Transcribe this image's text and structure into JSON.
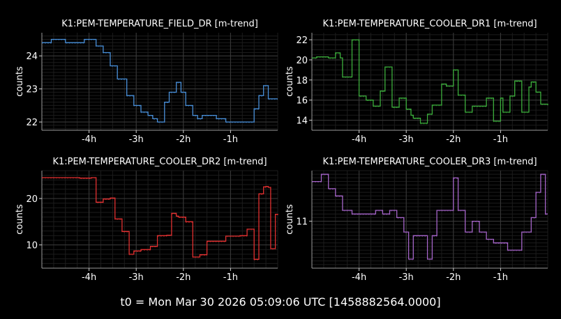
{
  "footer": {
    "text": "t0 = Mon Mar 30 2026 05:09:06 UTC [1458882564.0000]"
  },
  "chart_data": [
    {
      "type": "line",
      "title": "K1:PEM-TEMPERATURE_FIELD_DR [m-trend]",
      "xlabel": "",
      "ylabel": "counts",
      "xlim": [
        -5,
        0
      ],
      "ylim": [
        21.75,
        24.7
      ],
      "xticks": [
        -4,
        -3,
        -2,
        -1
      ],
      "xtick_labels": [
        "-4h",
        "-3h",
        "-2h",
        "-1h"
      ],
      "yticks": [
        22,
        23,
        24
      ],
      "ytick_labels": [
        "22",
        "23",
        "24"
      ],
      "grid": true,
      "color": "#4a90d9",
      "series": [
        {
          "x": [
            -5,
            -4.8,
            -4.5,
            -4.1,
            -3.85,
            -3.7,
            -3.55,
            -3.4,
            -3.2,
            -3.05,
            -2.9,
            -2.75,
            -2.65,
            -2.55,
            -2.4,
            -2.3,
            -2.15,
            -2.05,
            -1.95,
            -1.8,
            -1.7,
            -1.6,
            -1.5,
            -1.3,
            -1.1,
            -0.95,
            -0.8,
            -0.6,
            -0.5,
            -0.4,
            -0.3,
            -0.2,
            -0.1,
            -0.05,
            0
          ],
          "y": [
            24.4,
            24.5,
            24.4,
            24.5,
            24.3,
            24.1,
            23.7,
            23.3,
            22.8,
            22.5,
            22.3,
            22.2,
            22.1,
            22.0,
            22.6,
            22.9,
            23.2,
            22.9,
            22.5,
            22.2,
            22.1,
            22.2,
            22.2,
            22.1,
            22.0,
            22.0,
            22.0,
            22.0,
            22.4,
            22.8,
            23.1,
            22.7,
            22.7,
            22.7,
            22.7
          ]
        }
      ]
    },
    {
      "type": "line",
      "title": "K1:PEM-TEMPERATURE_COOLER_DR1 [m-trend]",
      "xlabel": "",
      "ylabel": "counts",
      "xlim": [
        -5,
        0
      ],
      "ylim": [
        13,
        22.7
      ],
      "xticks": [
        -4,
        -3,
        -2,
        -1
      ],
      "xtick_labels": [
        "-4h",
        "-3h",
        "-2h",
        "-1h"
      ],
      "yticks": [
        14,
        16,
        18,
        20,
        22
      ],
      "ytick_labels": [
        "14",
        "16",
        "18",
        "20",
        "22"
      ],
      "grid": true,
      "color": "#3cae3c",
      "series": [
        {
          "x": [
            -5,
            -4.9,
            -4.65,
            -4.5,
            -4.4,
            -4.35,
            -4.15,
            -4,
            -3.85,
            -3.7,
            -3.55,
            -3.45,
            -3.3,
            -3.15,
            -3.0,
            -2.9,
            -2.85,
            -2.7,
            -2.55,
            -2.45,
            -2.25,
            -2.15,
            -2.0,
            -1.9,
            -1.75,
            -1.6,
            -1.45,
            -1.3,
            -1.15,
            -1.0,
            -0.95,
            -0.8,
            -0.7,
            -0.55,
            -0.4,
            -0.35,
            -0.25,
            -0.15,
            0
          ],
          "y": [
            20.2,
            20.3,
            20.2,
            20.7,
            20.2,
            18.3,
            22.0,
            16.4,
            16.0,
            15.4,
            16.9,
            19.3,
            15.3,
            16.2,
            15.1,
            14.5,
            14.2,
            13.7,
            14.6,
            15.5,
            17.6,
            17.4,
            19.0,
            16.5,
            14.8,
            15.4,
            15.4,
            16.2,
            13.9,
            16.2,
            14.8,
            16.4,
            17.9,
            14.8,
            17.3,
            17.8,
            16.8,
            15.6,
            15.5
          ]
        }
      ]
    },
    {
      "type": "line",
      "title": "K1:PEM-TEMPERATURE_COOLER_DR2 [m-trend]",
      "xlabel": "",
      "ylabel": "counts",
      "xlim": [
        -5,
        0
      ],
      "ylim": [
        5,
        26
      ],
      "xticks": [
        -4,
        -3,
        -2,
        -1
      ],
      "xtick_labels": [
        "-4h",
        "-3h",
        "-2h",
        "-1h"
      ],
      "yticks": [
        10,
        20
      ],
      "ytick_labels": [
        "10",
        "20"
      ],
      "grid": true,
      "color": "#e03030",
      "series": [
        {
          "x": [
            -5,
            -4.2,
            -3.95,
            -3.85,
            -3.7,
            -3.55,
            -3.45,
            -3.3,
            -3.15,
            -3.05,
            -2.9,
            -2.7,
            -2.55,
            -2.35,
            -2.25,
            -2.15,
            -2.1,
            -1.95,
            -1.8,
            -1.65,
            -1.5,
            -1.35,
            -1.1,
            -0.85,
            -0.8,
            -0.65,
            -0.5,
            -0.4,
            -0.3,
            -0.25,
            -0.2,
            -0.15,
            -0.1,
            -0.05,
            0
          ],
          "y": [
            24.5,
            24.4,
            24.5,
            19.2,
            19.9,
            20.1,
            15.6,
            12.9,
            8.0,
            8.7,
            9.0,
            9.7,
            12.0,
            12.1,
            16.8,
            16.2,
            16.0,
            15.0,
            7.4,
            7.9,
            10.8,
            10.8,
            11.9,
            11.9,
            12.0,
            13.4,
            6.9,
            21.0,
            22.5,
            22.6,
            22.4,
            9.2,
            9.2,
            16.6,
            16.7
          ]
        }
      ]
    },
    {
      "type": "line",
      "title": "K1:PEM-TEMPERATURE_COOLER_DR3 [m-trend]",
      "xlabel": "",
      "ylabel": "counts",
      "xlim": [
        -5,
        0
      ],
      "ylim": [
        9.7,
        12.4
      ],
      "xticks": [
        -4,
        -3,
        -2,
        -1
      ],
      "xtick_labels": [
        "-4h",
        "-3h",
        "-2h",
        "-1h"
      ],
      "yticks": [
        11
      ],
      "ytick_labels": [
        "11"
      ],
      "grid": true,
      "color": "#a565c8",
      "series": [
        {
          "x": [
            -5,
            -4.8,
            -4.65,
            -4.5,
            -4.35,
            -4.15,
            -4.0,
            -3.8,
            -3.65,
            -3.5,
            -3.35,
            -3.2,
            -3.05,
            -2.95,
            -2.85,
            -2.7,
            -2.55,
            -2.45,
            -2.35,
            -2.15,
            -2.0,
            -1.9,
            -1.75,
            -1.6,
            -1.45,
            -1.3,
            -1.15,
            -1.0,
            -0.85,
            -0.7,
            -0.55,
            -0.35,
            -0.25,
            -0.15,
            -0.05,
            0
          ],
          "y": [
            12.1,
            12.3,
            11.9,
            11.7,
            11.3,
            11.2,
            11.2,
            11.2,
            11.3,
            11.2,
            11.3,
            11.1,
            10.7,
            9.95,
            10.6,
            10.6,
            9.95,
            10.6,
            11.3,
            11.3,
            12.2,
            11.3,
            10.7,
            11.0,
            10.7,
            10.5,
            10.4,
            10.4,
            10.2,
            10.2,
            10.7,
            11.1,
            11.8,
            12.3,
            11.2,
            11.2
          ]
        }
      ]
    }
  ]
}
